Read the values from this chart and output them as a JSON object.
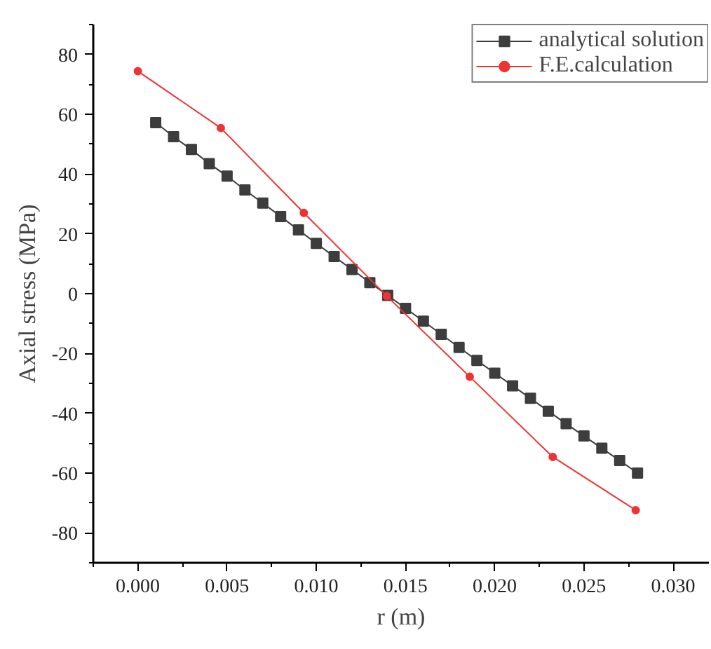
{
  "chart_data": {
    "type": "line",
    "xlabel": "r (m)",
    "ylabel": "Axial stress (MPa)",
    "xlim": [
      -0.0025,
      0.032
    ],
    "ylim": [
      -90,
      90
    ],
    "xticks": [
      {
        "value": 0,
        "label": "0.000"
      },
      {
        "value": 0.005,
        "label": "0.005"
      },
      {
        "value": 0.01,
        "label": "0.010"
      },
      {
        "value": 0.015,
        "label": "0.015"
      },
      {
        "value": 0.02,
        "label": "0.020"
      },
      {
        "value": 0.025,
        "label": "0.025"
      },
      {
        "value": 0.03,
        "label": "0.030"
      }
    ],
    "yticks": [
      -80,
      -60,
      -40,
      -20,
      0,
      20,
      40,
      60,
      80
    ],
    "grid": false,
    "legend": "top right",
    "series": [
      {
        "name": "analytical solution",
        "color": "#3d3d3d",
        "marker": "square",
        "x": [
          0.001,
          0.002,
          0.003,
          0.004,
          0.005,
          0.006,
          0.007,
          0.008,
          0.009,
          0.01,
          0.011,
          0.012,
          0.013,
          0.014,
          0.015,
          0.016,
          0.017,
          0.018,
          0.019,
          0.02,
          0.021,
          0.022,
          0.023,
          0.024,
          0.025,
          0.026,
          0.027,
          0.028
        ],
        "values": [
          57.2,
          52.5,
          48.2,
          43.5,
          39.3,
          34.7,
          30.3,
          25.8,
          21.3,
          16.8,
          12.4,
          8.1,
          3.7,
          -0.6,
          -4.9,
          -9.2,
          -13.6,
          -18.0,
          -22.3,
          -26.6,
          -30.8,
          -35.0,
          -39.3,
          -43.5,
          -47.6,
          -51.7,
          -55.8,
          -60.0
        ]
      },
      {
        "name": "F.E.calculation",
        "color": "#ee3333",
        "marker": "circle",
        "x": [
          0,
          0.00465,
          0.0093,
          0.01395,
          0.0186,
          0.02325,
          0.0279
        ],
        "values": [
          74.4,
          55.4,
          27.0,
          -0.8,
          -27.8,
          -54.6,
          -72.4
        ]
      }
    ]
  }
}
